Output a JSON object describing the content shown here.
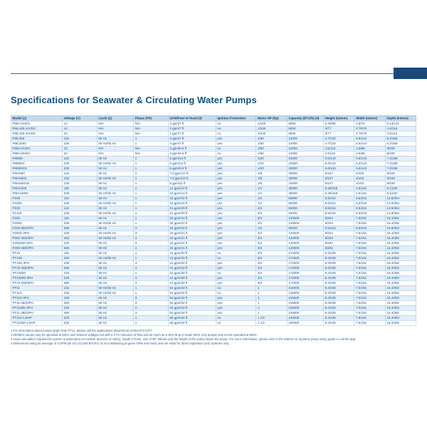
{
  "page": {
    "title": "Specifications for Seawater & Circulating Water Pumps"
  },
  "colors": {
    "accent_navy": "#1b4a7a",
    "rule_blue": "#2e6da4",
    "header_row_bg": "#c5d9eb",
    "zebra_row_bg": "#e2eef8",
    "text_blue": "#1d4f7d"
  },
  "table": {
    "columns": [
      "Model (1)",
      "Voltage (V)",
      "Cycle (2)",
      "Phase (Ph)",
      "GPM/Feet of Head (3)",
      "Ignition Protection",
      "Motor HP (hp)",
      "Capacity (BTU/h) (4)",
      "Height (in/mm)",
      "Width (in/mm)",
      "Depth (in/mm)"
    ],
    "rows": [
      [
        "PM6-12VDC",
        "12",
        "N/A",
        "N/A",
        "2 gpm/7 ft",
        "no",
        "1/100",
        "6000",
        "3.75/96",
        "2.8/72",
        "5.13/131"
      ],
      [
        "PML150-12VDC",
        "12",
        "N/A",
        "N/A",
        "2 gpm/7 ft",
        "no",
        "1/100",
        "6000",
        "3/77",
        "2.75/70",
        "4.5/115"
      ],
      [
        "PML150-24VDC",
        "24",
        "N/A",
        "N/A",
        "2 gpm/7 ft",
        "no",
        "1/100",
        "6000",
        "3/77",
        "2.75/70",
        "4.5/115"
      ],
      [
        "PML250",
        "115",
        "60 Hz",
        "1",
        "3 gpm/7 ft",
        "yes",
        "1/50",
        "12000",
        "4.7/120",
        "5.6/143",
        "6.2/158"
      ],
      [
        "PML250C",
        "230",
        "50 Hz/60 Hz",
        "1",
        "3 gpm/7 ft",
        "yes",
        "1/50",
        "12000",
        "4.7/120",
        "5.6/143",
        "6.2/158"
      ],
      [
        "PM8-12VDC",
        "12",
        "N/A",
        "N/A",
        "3 gpm/6.5 ft",
        "no",
        "1/50",
        "12000",
        "4.5/115",
        "3.5/89",
        "9/229"
      ],
      [
        "PM8-24VDC",
        "24",
        "N/A",
        "N/A",
        "3 gpm/6.5 ft",
        "no",
        "1/50",
        "12000",
        "4.5/115",
        "3.5/89",
        "9/229"
      ],
      [
        "PM500",
        "115",
        "60 Hz",
        "1",
        "6 gpm/14 ft",
        "yes",
        "1/20",
        "24000",
        "5.6/143",
        "5.6/143",
        "7.4/188"
      ],
      [
        "PM500C",
        "230",
        "50 Hz/60 Hz",
        "1",
        "6 gpm/14 ft",
        "yes",
        "1/20",
        "24000",
        "5.6/143",
        "5.6/143",
        "7.4/188"
      ],
      [
        "PM500CK",
        "230",
        "50 Hz",
        "1",
        "6 gpm/9.5 ft",
        "yes",
        "1/20",
        "20000",
        "5.6/143",
        "5.6/143",
        "7.4/188"
      ],
      [
        "PMA500",
        "115",
        "60 Hz",
        "1",
        "7.5 gpm/14 ft",
        "yes",
        "1/8",
        "30000",
        "5/127",
        "4/102",
        "9/229"
      ],
      [
        "PMA500C",
        "230",
        "50 Hz/60 Hz",
        "1",
        "7.5 gpm/14 ft",
        "yes",
        "1/8",
        "30000",
        "5/127",
        "4/102",
        "9/229"
      ],
      [
        "PMA500CB",
        "230",
        "50 Hz",
        "1",
        "6 gpm/11 ft",
        "yes",
        "1/8",
        "24000",
        "5/127",
        "4/102",
        "9/229"
      ],
      [
        "PMA1000",
        "115",
        "60 Hz",
        "1",
        "12 gpm/14 ft",
        "yes",
        "1/4",
        "48000",
        "6.25/159",
        "4.5/115",
        "9.1/232"
      ],
      [
        "PMA1000C",
        "230",
        "50 Hz/60 Hz",
        "1",
        "12 gpm/14 ft",
        "yes",
        "1/4",
        "48000",
        "6.25/159",
        "4.5/115",
        "9.1/232"
      ],
      [
        "P100",
        "115",
        "60 Hz",
        "1",
        "15 gpm/16 ft",
        "yes",
        "1/2",
        "60000",
        "8.5/216",
        "8.5/216",
        "13.9/354"
      ],
      [
        "P100Z",
        "230",
        "50 Hz/60 Hz",
        "1",
        "15 gpm/16 ft",
        "yes",
        "1/2",
        "60000",
        "8.5/216",
        "8.5/216",
        "13.9/354"
      ],
      [
        "P130",
        "115",
        "60 Hz",
        "1",
        "21 gpm/20 ft",
        "yes",
        "3/4",
        "84000",
        "8.5/216",
        "8.5/216",
        "13.9/354"
      ],
      [
        "P130Z",
        "230",
        "50 Hz/60 Hz",
        "1",
        "21 gpm/20 ft",
        "yes",
        "3/4",
        "84000",
        "8.5/216",
        "8.5/216",
        "13.9/354"
      ],
      [
        "P200",
        "115",
        "60 Hz",
        "1",
        "32 gpm/21 ft",
        "yes",
        "3/4",
        "120000",
        "8/204",
        "7.5/191",
        "15.4/392"
      ],
      [
        "P200Z",
        "230",
        "50 Hz/60 Hz",
        "1",
        "32 gpm/21 ft",
        "yes",
        "3/4",
        "120000",
        "8/204",
        "7.5/191",
        "15.4/392"
      ],
      [
        "P100-380/3PH",
        "380",
        "50 Hz",
        "3",
        "15 gpm/16 ft",
        "yes",
        "1/2",
        "60000",
        "8.5/216",
        "8.5/216",
        "13.9/354"
      ],
      [
        "P200Z-3PH",
        "230",
        "50 Hz/60 Hz",
        "3",
        "32 gpm/21 ft",
        "yes",
        "3/4",
        "120000",
        "8/204",
        "7.5/191",
        "15.4/392"
      ],
      [
        "P200-460/3PH",
        "460",
        "50 Hz/60 Hz",
        "3",
        "32 gpm/21 ft",
        "yes",
        "3/4",
        "120000",
        "8/204",
        "7.5/191",
        "15.4/392"
      ],
      [
        "P200Z50-3PH",
        "220",
        "50 Hz",
        "3",
        "32 gpm/21 ft",
        "yes",
        "3/4",
        "120000",
        "8/204",
        "7.5/191",
        "15.4/392"
      ],
      [
        "P200-380/3PH",
        "380",
        "50 Hz",
        "3",
        "32 gpm/21 ft",
        "yes",
        "3/4",
        "120000",
        "8/204",
        "7.5/191",
        "15.4/392"
      ],
      [
        "PT10",
        "115",
        "60 Hz",
        "1",
        "41 gpm/32 ft",
        "no",
        "3/4",
        "172000",
        "9.4/239",
        "7.5/191",
        "15.4/392"
      ],
      [
        "PT10Z",
        "230",
        "50 Hz/60 Hz",
        "1",
        "41 gpm/32 ft",
        "no",
        "3/4",
        "172000",
        "9.4/239",
        "7.5/191",
        "15.4/392"
      ],
      [
        "PT10Z-3PH",
        "230",
        "60 Hz",
        "3",
        "41 gpm/32 ft",
        "yes",
        "3/4",
        "172000",
        "9.4/239",
        "7.5/191",
        "15.4/392"
      ],
      [
        "PT10-460/3PH",
        "460",
        "60 Hz",
        "3",
        "41 gpm/32 ft",
        "yes",
        "3/4",
        "172000",
        "9.4/239",
        "7.5/191",
        "15.4/392"
      ],
      [
        "PT10Z50",
        "220",
        "50 Hz",
        "1",
        "41 gpm/30 ft",
        "no",
        "3/4",
        "172000",
        "9.4/239",
        "7.5/191",
        "15.4/392"
      ],
      [
        "PT10Z50-3PH",
        "220",
        "50 Hz",
        "3",
        "41 gpm/30 ft",
        "yes",
        "3/4",
        "172000",
        "9.4/239",
        "7.5/191",
        "15.4/392"
      ],
      [
        "PT10-380/3PH",
        "380",
        "50 Hz",
        "3",
        "41 gpm/30 ft",
        "yes",
        "3/4",
        "172000",
        "9.4/239",
        "7.5/191",
        "15.4/392"
      ],
      [
        "PT11",
        "115",
        "50 Hz/60 Hz",
        "1",
        "54 gpm/42 ft",
        "no",
        "1",
        "216000",
        "9.4/239",
        "7.5/191",
        "15.4/392"
      ],
      [
        "PT11Z",
        "230",
        "50 Hz/60 Hz",
        "1",
        "54 gpm/42 ft",
        "no",
        "1",
        "216000",
        "9.4/239",
        "7.5/191",
        "15.4/392"
      ],
      [
        "PT11Z-3PH",
        "230",
        "60 Hz",
        "3",
        "54 gpm/42 ft",
        "yes",
        "1",
        "216000",
        "9.4/239",
        "7.5/191",
        "15.4/392"
      ],
      [
        "PT11-460/3PH",
        "460",
        "60 Hz",
        "3",
        "54 gpm/42 ft",
        "yes",
        "1",
        "216000",
        "9.4/239",
        "7.5/191",
        "15.4/392"
      ],
      [
        "PT11Z50-3PH",
        "220",
        "50 Hz",
        "3",
        "54 gpm/44 ft",
        "yes",
        "1",
        "216000",
        "9.4/239",
        "7.5/191",
        "15.4/392"
      ],
      [
        "PT11-380/3PH",
        "380",
        "50 Hz",
        "3",
        "54 gpm/44 ft",
        "yes",
        "1",
        "216000",
        "9.4/239",
        "7.5/191",
        "15.4/392"
      ],
      [
        "PT11Z-1.5HP",
        "230",
        "60 Hz",
        "1",
        "65 gpm/44 ft",
        "no",
        "1 1/2",
        "240000",
        "9.4/239",
        "7.5/191",
        "15.4/392"
      ],
      [
        "PT11Z50-1.5HP",
        "220",
        "50 Hz",
        "1",
        "65 gpm/44 ft",
        "no",
        "1 1/2",
        "240000",
        "9.4/239",
        "7.5/191",
        "15.4/392"
      ]
    ]
  },
  "footnotes": [
    "1 For information about pumps larger than PT11, please call the applications department at 954-973-2477.",
    "2 50/60Hz pumps may be operated at 50Hz and reduced voltages but with a 17% reduction of flow and as much as a 30% drop in head; 60Hz only pumps may not be operated at 50Hz.",
    "3 Head calculation required for system is dependent on number and size of unit(s), length of hose, size of 90° elbows and the height of the unit(s) above the pump. For more information, please refer to the Marine Air Systems pump sizing guide or call the app.",
    "4 Determined using an average of 3 GPM per ton (12,000 BTU/hr) of air conditioning at given GPM and head, and are rated for direct expansion (DX) systems only."
  ]
}
